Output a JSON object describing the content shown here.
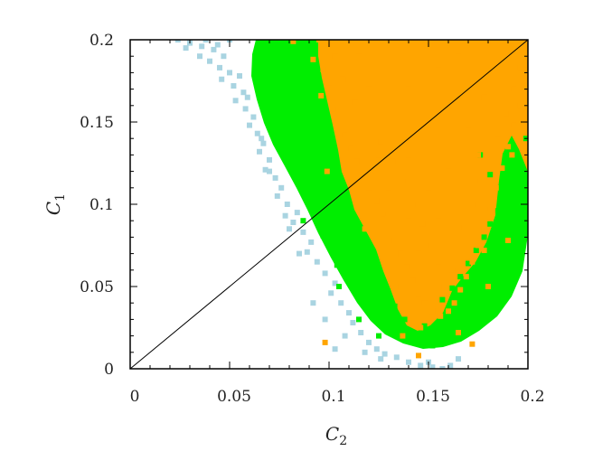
{
  "chart_data": {
    "type": "scatter",
    "title": "",
    "xlabel": "C",
    "xlabel_subscript": "2",
    "ylabel": "C",
    "ylabel_subscript": "1",
    "xlim": [
      0,
      0.2
    ],
    "ylim": [
      0,
      0.2
    ],
    "xticks": [
      "0",
      "0.05",
      "0.1",
      "0.15",
      "0.2"
    ],
    "yticks": [
      "0",
      "0.05",
      "0.1",
      "0.15",
      "0.2"
    ],
    "grid": false,
    "legend": "none",
    "colors": {
      "light": "#a9d4e1",
      "green": "#00ee00",
      "orange": "#ffa500",
      "line": "#000000"
    },
    "reference_line": {
      "x": [
        0,
        0.2
      ],
      "y": [
        0,
        0.2
      ]
    },
    "series": [
      {
        "color": "light",
        "points": [
          [
            0.024,
            0.2
          ],
          [
            0.03,
            0.198
          ],
          [
            0.036,
            0.196
          ],
          [
            0.042,
            0.194
          ],
          [
            0.047,
            0.19
          ],
          [
            0.04,
            0.187
          ],
          [
            0.045,
            0.183
          ],
          [
            0.05,
            0.18
          ],
          [
            0.046,
            0.176
          ],
          [
            0.052,
            0.172
          ],
          [
            0.057,
            0.168
          ],
          [
            0.053,
            0.163
          ],
          [
            0.058,
            0.158
          ],
          [
            0.062,
            0.153
          ],
          [
            0.06,
            0.148
          ],
          [
            0.064,
            0.143
          ],
          [
            0.067,
            0.137
          ],
          [
            0.065,
            0.132
          ],
          [
            0.07,
            0.127
          ],
          [
            0.068,
            0.121
          ],
          [
            0.073,
            0.116
          ],
          [
            0.076,
            0.11
          ],
          [
            0.074,
            0.105
          ],
          [
            0.079,
            0.1
          ],
          [
            0.084,
            0.095
          ],
          [
            0.082,
            0.089
          ],
          [
            0.087,
            0.083
          ],
          [
            0.091,
            0.077
          ],
          [
            0.089,
            0.071
          ],
          [
            0.094,
            0.065
          ],
          [
            0.098,
            0.058
          ],
          [
            0.103,
            0.052
          ],
          [
            0.101,
            0.046
          ],
          [
            0.106,
            0.04
          ],
          [
            0.11,
            0.034
          ],
          [
            0.112,
            0.028
          ],
          [
            0.116,
            0.022
          ],
          [
            0.12,
            0.016
          ],
          [
            0.124,
            0.012
          ],
          [
            0.128,
            0.009
          ],
          [
            0.134,
            0.007
          ],
          [
            0.14,
            0.004
          ],
          [
            0.146,
            0.002
          ],
          [
            0.152,
            0.001
          ],
          [
            0.157,
            0.0
          ],
          [
            0.161,
            0.002
          ],
          [
            0.165,
            0.006
          ],
          [
            0.103,
            0.012
          ],
          [
            0.108,
            0.02
          ],
          [
            0.118,
            0.01
          ],
          [
            0.126,
            0.006
          ],
          [
            0.15,
            0.004
          ],
          [
            0.092,
            0.04
          ],
          [
            0.098,
            0.03
          ],
          [
            0.085,
            0.07
          ],
          [
            0.08,
            0.085
          ],
          [
            0.078,
            0.093
          ],
          [
            0.07,
            0.12
          ],
          [
            0.066,
            0.14
          ],
          [
            0.059,
            0.165
          ],
          [
            0.055,
            0.178
          ],
          [
            0.035,
            0.19
          ],
          [
            0.028,
            0.195
          ],
          [
            0.044,
            0.197
          ],
          [
            0.05,
            0.2
          ],
          [
            0.038,
            0.2
          ]
        ]
      },
      {
        "color": "green",
        "points": [
          [
            0.065,
            0.2
          ],
          [
            0.07,
            0.195
          ],
          [
            0.064,
            0.19
          ],
          [
            0.068,
            0.185
          ],
          [
            0.075,
            0.182
          ],
          [
            0.066,
            0.176
          ],
          [
            0.072,
            0.171
          ],
          [
            0.069,
            0.165
          ],
          [
            0.074,
            0.16
          ],
          [
            0.078,
            0.155
          ],
          [
            0.072,
            0.149
          ],
          [
            0.077,
            0.144
          ],
          [
            0.081,
            0.138
          ],
          [
            0.076,
            0.132
          ],
          [
            0.082,
            0.127
          ],
          [
            0.086,
            0.121
          ],
          [
            0.084,
            0.115
          ],
          [
            0.089,
            0.11
          ],
          [
            0.093,
            0.104
          ],
          [
            0.091,
            0.098
          ],
          [
            0.095,
            0.093
          ],
          [
            0.099,
            0.087
          ],
          [
            0.097,
            0.081
          ],
          [
            0.102,
            0.075
          ],
          [
            0.106,
            0.069
          ],
          [
            0.104,
            0.063
          ],
          [
            0.109,
            0.057
          ],
          [
            0.113,
            0.051
          ],
          [
            0.116,
            0.045
          ],
          [
            0.12,
            0.039
          ],
          [
            0.124,
            0.033
          ],
          [
            0.129,
            0.027
          ],
          [
            0.134,
            0.022
          ],
          [
            0.14,
            0.018
          ],
          [
            0.146,
            0.015
          ],
          [
            0.152,
            0.014
          ],
          [
            0.158,
            0.016
          ],
          [
            0.164,
            0.019
          ],
          [
            0.17,
            0.023
          ],
          [
            0.175,
            0.028
          ],
          [
            0.179,
            0.034
          ],
          [
            0.183,
            0.04
          ],
          [
            0.186,
            0.047
          ],
          [
            0.189,
            0.054
          ],
          [
            0.192,
            0.062
          ],
          [
            0.194,
            0.07
          ],
          [
            0.196,
            0.078
          ],
          [
            0.197,
            0.086
          ],
          [
            0.198,
            0.095
          ],
          [
            0.197,
            0.104
          ],
          [
            0.195,
            0.112
          ],
          [
            0.193,
            0.12
          ],
          [
            0.19,
            0.127
          ],
          [
            0.188,
            0.104
          ],
          [
            0.185,
            0.096
          ],
          [
            0.181,
            0.088
          ],
          [
            0.178,
            0.08
          ],
          [
            0.174,
            0.072
          ],
          [
            0.17,
            0.064
          ],
          [
            0.166,
            0.056
          ],
          [
            0.162,
            0.049
          ],
          [
            0.157,
            0.042
          ],
          [
            0.081,
            0.19
          ],
          [
            0.085,
            0.2
          ],
          [
            0.078,
            0.173
          ],
          [
            0.083,
            0.165
          ],
          [
            0.088,
            0.152
          ],
          [
            0.09,
            0.14
          ],
          [
            0.095,
            0.128
          ],
          [
            0.098,
            0.118
          ],
          [
            0.1,
            0.106
          ],
          [
            0.108,
            0.095
          ],
          [
            0.112,
            0.082
          ],
          [
            0.118,
            0.068
          ],
          [
            0.122,
            0.056
          ],
          [
            0.128,
            0.046
          ],
          [
            0.133,
            0.038
          ],
          [
            0.138,
            0.03
          ],
          [
            0.148,
            0.026
          ],
          [
            0.155,
            0.028
          ],
          [
            0.162,
            0.033
          ],
          [
            0.168,
            0.04
          ],
          [
            0.173,
            0.048
          ],
          [
            0.178,
            0.058
          ],
          [
            0.184,
            0.066
          ],
          [
            0.188,
            0.075
          ],
          [
            0.192,
            0.085
          ],
          [
            0.195,
            0.097
          ],
          [
            0.186,
            0.11
          ],
          [
            0.181,
            0.118
          ],
          [
            0.176,
            0.13
          ],
          [
            0.096,
            0.085
          ],
          [
            0.087,
            0.09
          ],
          [
            0.105,
            0.05
          ],
          [
            0.115,
            0.03
          ],
          [
            0.125,
            0.02
          ],
          [
            0.199,
            0.115
          ],
          [
            0.199,
            0.14
          ]
        ]
      },
      {
        "color": "orange",
        "points": [
          [
            0.095,
            0.2
          ],
          [
            0.1,
            0.195
          ],
          [
            0.092,
            0.188
          ],
          [
            0.097,
            0.182
          ],
          [
            0.1,
            0.174
          ],
          [
            0.096,
            0.166
          ],
          [
            0.102,
            0.158
          ],
          [
            0.105,
            0.15
          ],
          [
            0.108,
            0.142
          ],
          [
            0.111,
            0.134
          ],
          [
            0.114,
            0.126
          ],
          [
            0.117,
            0.118
          ],
          [
            0.12,
            0.11
          ],
          [
            0.124,
            0.102
          ],
          [
            0.127,
            0.094
          ],
          [
            0.13,
            0.086
          ],
          [
            0.133,
            0.078
          ],
          [
            0.136,
            0.07
          ],
          [
            0.139,
            0.062
          ],
          [
            0.142,
            0.054
          ],
          [
            0.145,
            0.046
          ],
          [
            0.148,
            0.04
          ],
          [
            0.152,
            0.035
          ],
          [
            0.156,
            0.032
          ],
          [
            0.16,
            0.035
          ],
          [
            0.163,
            0.04
          ],
          [
            0.166,
            0.048
          ],
          [
            0.169,
            0.056
          ],
          [
            0.172,
            0.065
          ],
          [
            0.175,
            0.075
          ],
          [
            0.178,
            0.085
          ],
          [
            0.181,
            0.097
          ],
          [
            0.184,
            0.11
          ],
          [
            0.187,
            0.122
          ],
          [
            0.19,
            0.135
          ],
          [
            0.193,
            0.148
          ],
          [
            0.196,
            0.16
          ],
          [
            0.198,
            0.172
          ],
          [
            0.199,
            0.185
          ],
          [
            0.199,
            0.198
          ],
          [
            0.19,
            0.2
          ],
          [
            0.17,
            0.2
          ],
          [
            0.15,
            0.2
          ],
          [
            0.13,
            0.2
          ],
          [
            0.11,
            0.2
          ],
          [
            0.103,
            0.19
          ],
          [
            0.107,
            0.176
          ],
          [
            0.113,
            0.162
          ],
          [
            0.12,
            0.15
          ],
          [
            0.126,
            0.138
          ],
          [
            0.132,
            0.126
          ],
          [
            0.137,
            0.114
          ],
          [
            0.142,
            0.1
          ],
          [
            0.147,
            0.088
          ],
          [
            0.151,
            0.075
          ],
          [
            0.155,
            0.062
          ],
          [
            0.158,
            0.05
          ],
          [
            0.162,
            0.06
          ],
          [
            0.165,
            0.072
          ],
          [
            0.168,
            0.086
          ],
          [
            0.172,
            0.1
          ],
          [
            0.176,
            0.114
          ],
          [
            0.18,
            0.128
          ],
          [
            0.185,
            0.14
          ],
          [
            0.189,
            0.155
          ],
          [
            0.193,
            0.17
          ],
          [
            0.196,
            0.183
          ],
          [
            0.192,
            0.192
          ],
          [
            0.18,
            0.186
          ],
          [
            0.17,
            0.175
          ],
          [
            0.16,
            0.16
          ],
          [
            0.15,
            0.145
          ],
          [
            0.14,
            0.13
          ],
          [
            0.13,
            0.15
          ],
          [
            0.12,
            0.17
          ],
          [
            0.115,
            0.19
          ],
          [
            0.14,
            0.17
          ],
          [
            0.155,
            0.185
          ],
          [
            0.165,
            0.19
          ],
          [
            0.178,
            0.165
          ],
          [
            0.17,
            0.145
          ],
          [
            0.16,
            0.12
          ],
          [
            0.15,
            0.11
          ],
          [
            0.165,
            0.1
          ],
          [
            0.175,
            0.13
          ],
          [
            0.185,
            0.175
          ],
          [
            0.14,
            0.09
          ],
          [
            0.145,
            0.07
          ],
          [
            0.155,
            0.09
          ],
          [
            0.13,
            0.11
          ],
          [
            0.125,
            0.13
          ],
          [
            0.082,
            0.199
          ],
          [
            0.099,
            0.12
          ],
          [
            0.118,
            0.085
          ],
          [
            0.136,
            0.05
          ],
          [
            0.146,
            0.025
          ],
          [
            0.165,
            0.022
          ],
          [
            0.137,
            0.02
          ],
          [
            0.098,
            0.016
          ],
          [
            0.145,
            0.008
          ],
          [
            0.172,
            0.015
          ],
          [
            0.18,
            0.05
          ],
          [
            0.178,
            0.072
          ],
          [
            0.19,
            0.078
          ],
          [
            0.192,
            0.13
          ]
        ]
      }
    ]
  }
}
